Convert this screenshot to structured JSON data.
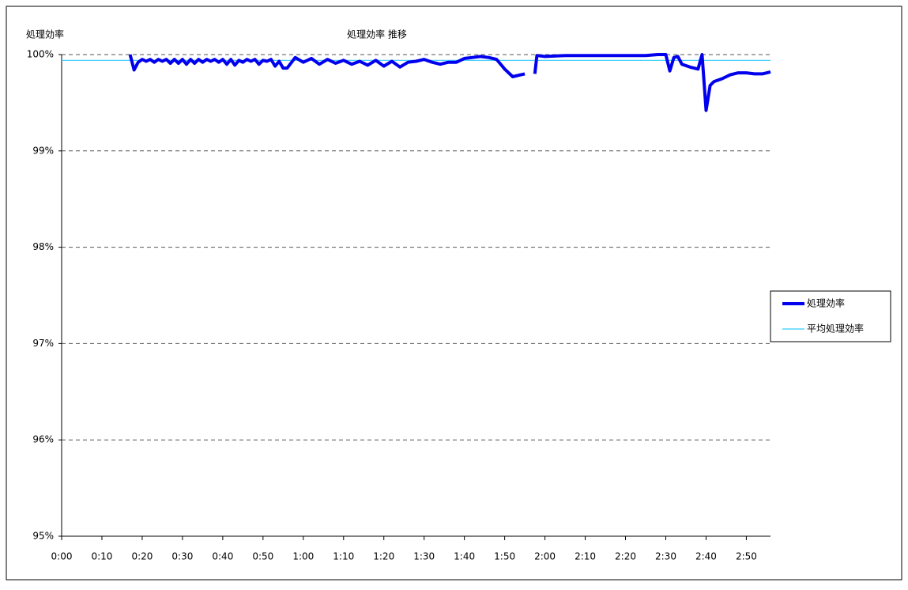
{
  "chart_data": {
    "type": "line",
    "title": "処理効率 推移",
    "y_label": "処理効率",
    "xlim": [
      0,
      176
    ],
    "xticks": [
      {
        "value": 0,
        "label": "0:00"
      },
      {
        "value": 10,
        "label": "0:10"
      },
      {
        "value": 20,
        "label": "0:20"
      },
      {
        "value": 30,
        "label": "0:30"
      },
      {
        "value": 40,
        "label": "0:40"
      },
      {
        "value": 50,
        "label": "0:50"
      },
      {
        "value": 60,
        "label": "1:00"
      },
      {
        "value": 70,
        "label": "1:10"
      },
      {
        "value": 80,
        "label": "1:20"
      },
      {
        "value": 90,
        "label": "1:30"
      },
      {
        "value": 100,
        "label": "1:40"
      },
      {
        "value": 110,
        "label": "1:50"
      },
      {
        "value": 120,
        "label": "2:00"
      },
      {
        "value": 130,
        "label": "2:10"
      },
      {
        "value": 140,
        "label": "2:20"
      },
      {
        "value": 150,
        "label": "2:30"
      },
      {
        "value": 160,
        "label": "2:40"
      },
      {
        "value": 170,
        "label": "2:50"
      }
    ],
    "ylim": [
      95,
      100
    ],
    "yticks": [
      {
        "value": 95,
        "label": "95%"
      },
      {
        "value": 96,
        "label": "96%"
      },
      {
        "value": 97,
        "label": "97%"
      },
      {
        "value": 98,
        "label": "98%"
      },
      {
        "value": 99,
        "label": "99%"
      },
      {
        "value": 100,
        "label": "100%"
      }
    ],
    "grid": true,
    "legend": "right",
    "series": [
      {
        "name": "処理効率",
        "color": "#0000ee",
        "x": [
          17,
          18,
          19,
          20,
          21,
          22,
          23,
          24,
          25,
          26,
          27,
          28,
          29,
          30,
          31,
          32,
          33,
          34,
          35,
          36,
          37,
          38,
          39,
          40,
          41,
          42,
          43,
          44,
          45,
          46,
          47,
          48,
          49,
          50,
          51,
          52,
          53,
          54,
          55,
          56,
          58,
          60,
          62,
          64,
          66,
          68,
          70,
          72,
          74,
          76,
          78,
          80,
          82,
          84,
          86,
          88,
          90,
          92,
          94,
          96,
          98,
          100,
          102,
          104,
          106,
          108,
          110,
          112,
          114,
          115,
          116,
          117.5,
          118,
          120,
          125,
          130,
          135,
          140,
          145,
          148,
          150,
          151,
          152,
          153,
          154,
          156,
          158,
          159,
          160,
          161,
          162,
          164,
          166,
          168,
          170,
          172,
          174,
          176
        ],
        "values": [
          100.0,
          99.84,
          99.92,
          99.95,
          99.93,
          99.95,
          99.92,
          99.95,
          99.93,
          99.95,
          99.91,
          99.95,
          99.91,
          99.95,
          99.9,
          99.95,
          99.91,
          99.95,
          99.92,
          99.95,
          99.93,
          99.95,
          99.92,
          99.95,
          99.9,
          99.95,
          99.89,
          99.94,
          99.92,
          99.95,
          99.93,
          99.95,
          99.9,
          99.94,
          99.93,
          99.95,
          99.88,
          99.93,
          99.86,
          99.86,
          99.97,
          99.92,
          99.96,
          99.9,
          99.95,
          99.91,
          99.94,
          99.9,
          99.93,
          99.89,
          99.94,
          99.88,
          99.93,
          99.87,
          99.92,
          99.93,
          99.95,
          99.92,
          99.9,
          99.92,
          99.92,
          99.96,
          99.97,
          99.98,
          99.97,
          99.95,
          99.85,
          99.77,
          99.79,
          99.8,
          null,
          99.8,
          99.99,
          99.98,
          99.99,
          99.99,
          99.99,
          99.99,
          99.99,
          100.0,
          100.0,
          99.83,
          99.97,
          99.98,
          99.9,
          99.87,
          99.85,
          100.0,
          99.42,
          99.68,
          99.72,
          99.75,
          99.79,
          99.81,
          99.81,
          99.8,
          99.8,
          99.82
        ]
      },
      {
        "name": "平均処理効率",
        "color": "#33ccff",
        "x": [
          0,
          176
        ],
        "values": [
          99.94,
          99.94
        ]
      }
    ]
  }
}
